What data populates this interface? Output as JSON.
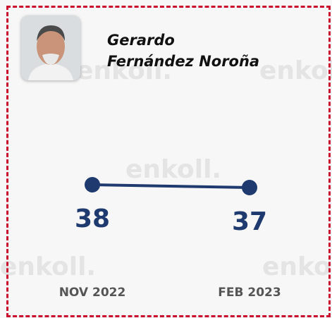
{
  "watermark": "enkoll.",
  "chart_data": {
    "type": "line",
    "title": "Gerardo Fernández Noroña",
    "categories": [
      "NOV 2022",
      "FEB 2023"
    ],
    "values": [
      38,
      37
    ],
    "color": "#1f3a6e"
  }
}
